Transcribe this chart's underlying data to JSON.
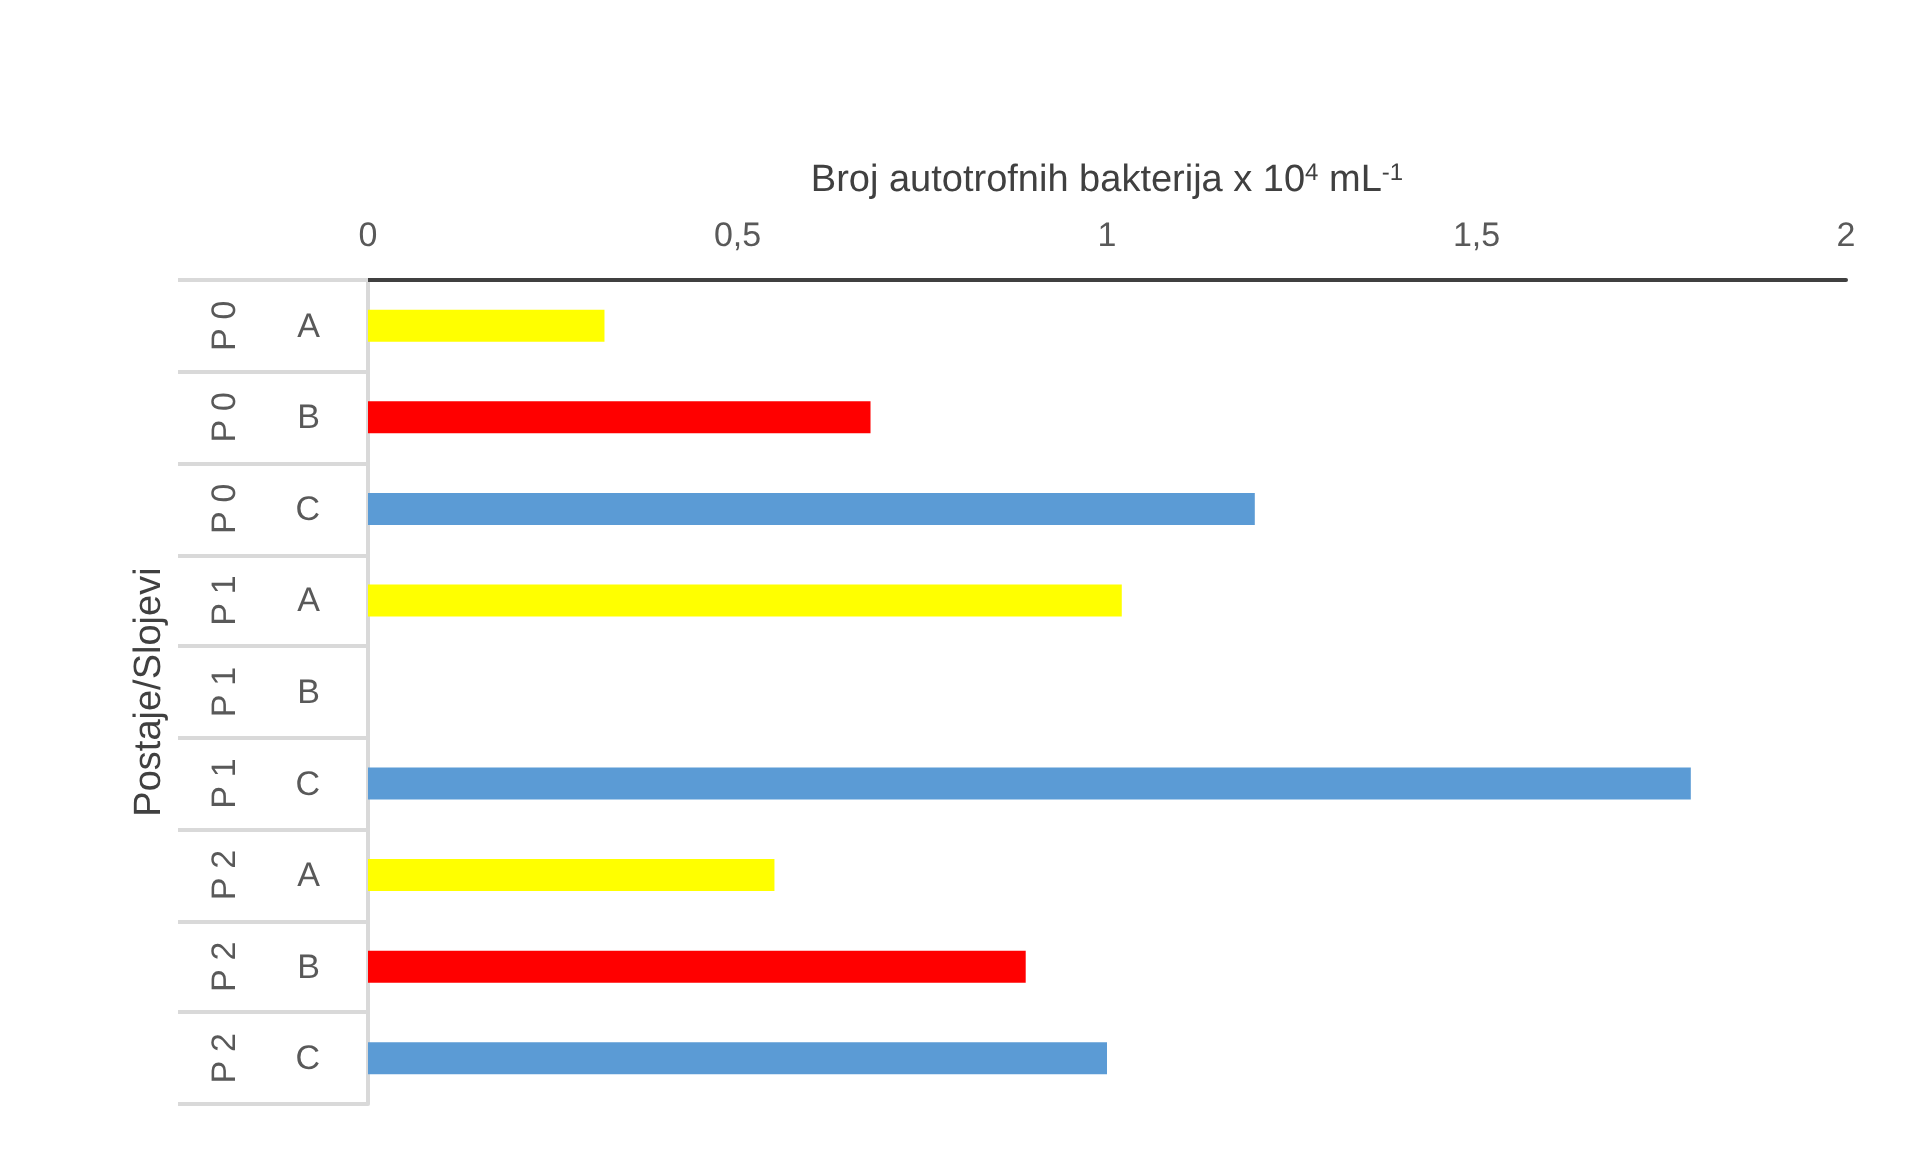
{
  "chart_data": {
    "type": "bar",
    "orientation": "horizontal",
    "xlabel": "Broj autotrofnih bakterija x 10$^{4}$ mL$^{-1}$",
    "ylabel": "Postaje/Slojevi",
    "categories": [
      "P 0 A",
      "P 0 B",
      "P 0 C",
      "P 1 A",
      "P 1 B",
      "P 1 C",
      "P 2 A",
      "P 2 B",
      "P 2 C"
    ],
    "values": [
      0.32,
      0.68,
      1.2,
      1.02,
      null,
      1.79,
      0.55,
      0.89,
      1.0
    ],
    "colors": [
      "#ffff00",
      "#ff0000",
      "#5b9bd5",
      "#ffff00",
      "#ff0000",
      "#5b9bd5",
      "#ffff00",
      "#ff0000",
      "#5b9bd5"
    ],
    "xlim": [
      0,
      2
    ],
    "xticks": [
      0,
      {
        "value": 0.5,
        "label": "0,5"
      },
      1,
      {
        "value": 1.5,
        "label": "1,5"
      },
      2
    ],
    "grid": false
  }
}
